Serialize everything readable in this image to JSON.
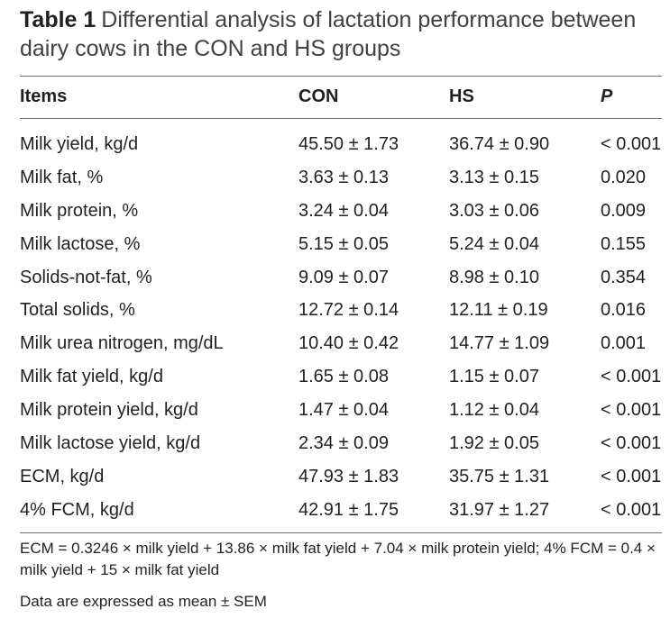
{
  "caption": {
    "label": "Table 1",
    "text": "Differential analysis of lactation performance between dairy cows in the CON and HS groups"
  },
  "table": {
    "headers": [
      "Items",
      "CON",
      "HS",
      "P"
    ],
    "rows": [
      [
        "Milk yield, kg/d",
        "45.50 ± 1.73",
        "36.74 ± 0.90",
        "< 0.001"
      ],
      [
        "Milk fat, %",
        "3.63 ± 0.13",
        "3.13 ± 0.15",
        "0.020"
      ],
      [
        "Milk protein, %",
        "3.24 ± 0.04",
        "3.03 ± 0.06",
        "0.009"
      ],
      [
        "Milk lactose, %",
        "5.15 ± 0.05",
        "5.24 ± 0.04",
        "0.155"
      ],
      [
        "Solids-not-fat, %",
        "9.09 ± 0.07",
        "8.98 ± 0.10",
        "0.354"
      ],
      [
        "Total solids, %",
        "12.72 ± 0.14",
        "12.11 ± 0.19",
        "0.016"
      ],
      [
        "Milk urea nitrogen, mg/dL",
        "10.40 ± 0.42",
        "14.77 ± 1.09",
        "0.001"
      ],
      [
        "Milk fat yield, kg/d",
        "1.65 ± 0.08",
        "1.15 ± 0.07",
        "< 0.001"
      ],
      [
        "Milk protein yield, kg/d",
        "1.47 ± 0.04",
        "1.12 ± 0.04",
        "< 0.001"
      ],
      [
        "Milk lactose yield, kg/d",
        "2.34 ± 0.09",
        "1.92 ± 0.05",
        "< 0.001"
      ],
      [
        "ECM, kg/d",
        "47.93 ± 1.83",
        "35.75 ± 1.31",
        "< 0.001"
      ],
      [
        "4% FCM, kg/d",
        "42.91 ± 1.75",
        "31.97 ± 1.27",
        "< 0.001"
      ]
    ]
  },
  "footnotes": {
    "formula": "ECM = 0.3246 × milk yield + 13.86 × milk fat yield + 7.04 × milk protein yield; 4% FCM = 0.4 × milk yield + 15 × milk fat yield",
    "expression": "Data are expressed as mean ± SEM"
  }
}
